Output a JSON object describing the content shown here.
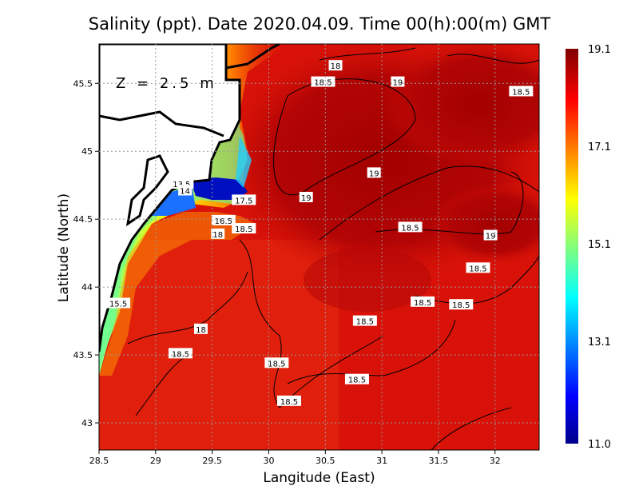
{
  "title": "Salinity (ppt). Date 2020.04.09. Time 00(h):00(m)  GMT",
  "depth_label": "Z = 2.5 m",
  "chart_data": {
    "type": "heatmap",
    "title": "Salinity (ppt). Date 2020.04.09. Time 00(h):00(m)  GMT",
    "xlabel": "Langitude (East)",
    "ylabel": "Latitude (North)",
    "xlim": [
      28.5,
      32.39
    ],
    "ylim": [
      42.8,
      45.79
    ],
    "xticks": [
      "28.5",
      "29",
      "29.5",
      "30",
      "30.5",
      "31",
      "31.5",
      "32"
    ],
    "yticks": [
      "43",
      "43.5",
      "44",
      "44.5",
      "45",
      "45.5"
    ],
    "grid": true,
    "colorbar": {
      "min": 11.0,
      "max": 19.1,
      "ticks": [
        "19.1",
        "17.1",
        "15.1",
        "13.1",
        "11.0"
      ],
      "colormap": "jet"
    },
    "contour_labels": [
      {
        "lon": 30.59,
        "lat": 45.63,
        "value": "18"
      },
      {
        "lon": 30.48,
        "lat": 45.51,
        "value": "18.5"
      },
      {
        "lon": 31.14,
        "lat": 45.51,
        "value": "19"
      },
      {
        "lon": 32.23,
        "lat": 45.44,
        "value": "18.5"
      },
      {
        "lon": 30.93,
        "lat": 44.84,
        "value": "19"
      },
      {
        "lon": 30.33,
        "lat": 44.66,
        "value": "19"
      },
      {
        "lon": 29.78,
        "lat": 44.64,
        "value": "17.5"
      },
      {
        "lon": 29.6,
        "lat": 44.49,
        "value": "16.5"
      },
      {
        "lon": 29.55,
        "lat": 44.39,
        "value": "18"
      },
      {
        "lon": 29.78,
        "lat": 44.43,
        "value": "18.5"
      },
      {
        "lon": 31.25,
        "lat": 44.44,
        "value": "18.5"
      },
      {
        "lon": 31.96,
        "lat": 44.38,
        "value": "19"
      },
      {
        "lon": 31.85,
        "lat": 44.14,
        "value": "18.5"
      },
      {
        "lon": 31.36,
        "lat": 43.89,
        "value": "18.5"
      },
      {
        "lon": 31.7,
        "lat": 43.87,
        "value": "18.5"
      },
      {
        "lon": 30.85,
        "lat": 43.75,
        "value": "18.5"
      },
      {
        "lon": 29.4,
        "lat": 43.69,
        "value": "18"
      },
      {
        "lon": 29.22,
        "lat": 43.51,
        "value": "18.5"
      },
      {
        "lon": 30.07,
        "lat": 43.44,
        "value": "18.5"
      },
      {
        "lon": 30.78,
        "lat": 43.32,
        "value": "18.5"
      },
      {
        "lon": 30.18,
        "lat": 43.16,
        "value": "18.5"
      },
      {
        "lon": 29.23,
        "lat": 44.76,
        "value": "13.5"
      },
      {
        "lon": 29.26,
        "lat": 44.71,
        "value": "14"
      },
      {
        "lon": 28.67,
        "lat": 43.88,
        "value": "15.5"
      }
    ]
  }
}
